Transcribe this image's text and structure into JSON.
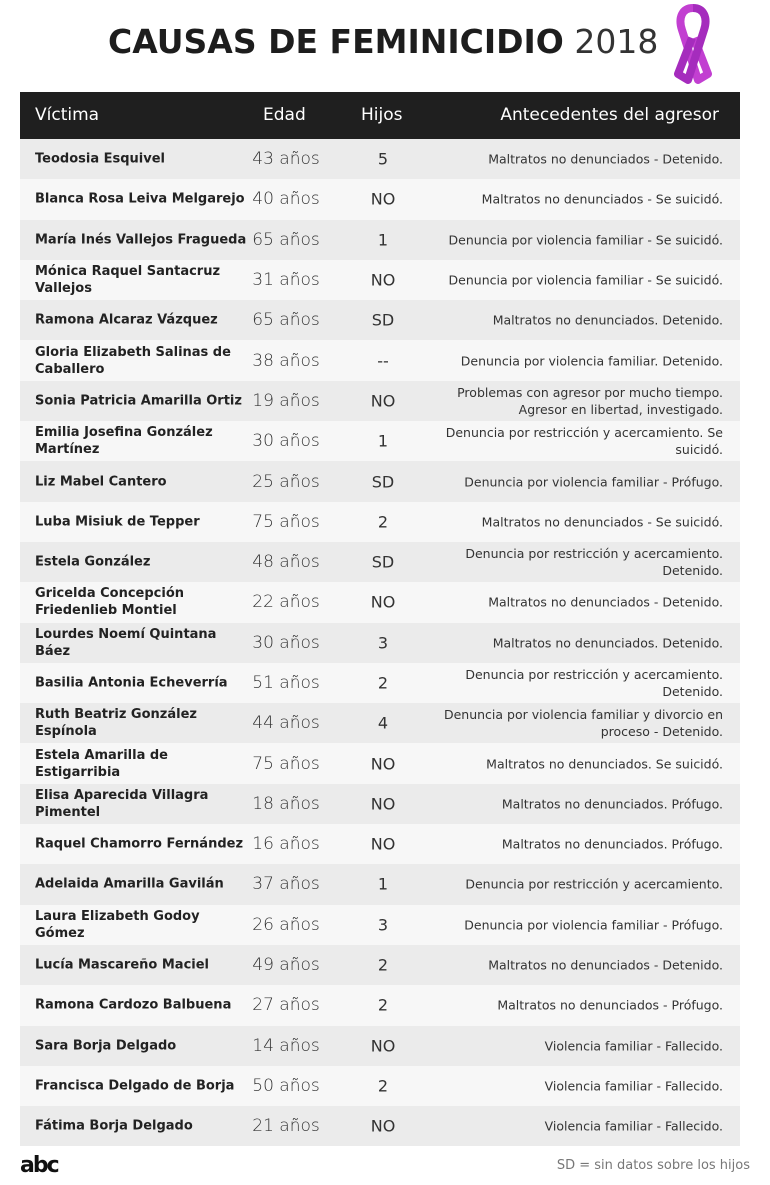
{
  "title": {
    "bold": "CAUSAS DE FEMINICIDIO",
    "year": "2018"
  },
  "ribbon_color": "#c23fd1",
  "header": {
    "victima": "Víctima",
    "edad": "Edad",
    "hijos": "Hijos",
    "antecedentes": "Antecedentes del agresor"
  },
  "rows": [
    {
      "name": "Teodosia Esquivel",
      "age": "43 años",
      "kids": "5",
      "ant": "Maltratos no denunciados - Detenido."
    },
    {
      "name": "Blanca Rosa Leiva Melgarejo",
      "age": "40 años",
      "kids": "NO",
      "ant": "Maltratos no denunciados - Se suicidó."
    },
    {
      "name": "María Inés Vallejos Fragueda",
      "age": "65 años",
      "kids": "1",
      "ant": "Denuncia por violencia familiar - Se suicidó."
    },
    {
      "name": "Mónica Raquel Santacruz Vallejos",
      "age": "31 años",
      "kids": "NO",
      "ant": "Denuncia por violencia familiar - Se suicidó."
    },
    {
      "name": "Ramona Alcaraz Vázquez",
      "age": "65 años",
      "kids": "SD",
      "ant": "Maltratos no denunciados. Detenido."
    },
    {
      "name": "Gloria Elizabeth Salinas de Caballero",
      "age": "38 años",
      "kids": "--",
      "ant": "Denuncia por violencia familiar. Detenido."
    },
    {
      "name": "Sonia Patricia Amarilla Ortiz",
      "age": "19 años",
      "kids": "NO",
      "ant": "Problemas con agresor por mucho tiempo. Agresor en libertad, investigado."
    },
    {
      "name": "Emilia Josefina González Martínez",
      "age": "30 años",
      "kids": "1",
      "ant": "Denuncia por restricción y acercamiento. Se suicidó."
    },
    {
      "name": "Liz Mabel Cantero",
      "age": "25 años",
      "kids": "SD",
      "ant": "Denuncia por violencia familiar - Prófugo."
    },
    {
      "name": "Luba Misiuk de Tepper",
      "age": "75 años",
      "kids": "2",
      "ant": "Maltratos no denunciados - Se suicidó."
    },
    {
      "name": "Estela González",
      "age": "48 años",
      "kids": "SD",
      "ant": "Denuncia por restricción y acercamiento. Detenido."
    },
    {
      "name": "Gricelda Concepción Friedenlieb Montiel",
      "age": "22 años",
      "kids": "NO",
      "ant": "Maltratos no denunciados - Detenido."
    },
    {
      "name": "Lourdes Noemí Quintana Báez",
      "age": "30 años",
      "kids": "3",
      "ant": "Maltratos no denunciados. Detenido."
    },
    {
      "name": "Basilia Antonia Echeverría",
      "age": "51 años",
      "kids": "2",
      "ant": "Denuncia por restricción y acercamiento. Detenido."
    },
    {
      "name": "Ruth Beatriz González Espínola",
      "age": "44 años",
      "kids": "4",
      "ant": "Denuncia por violencia familiar y divorcio en proceso - Detenido."
    },
    {
      "name": "Estela Amarilla de Estigarribia",
      "age": "75 años",
      "kids": "NO",
      "ant": "Maltratos no denunciados. Se suicidó."
    },
    {
      "name": "Elisa Aparecida Villagra Pimentel",
      "age": "18 años",
      "kids": "NO",
      "ant": "Maltratos no denunciados. Prófugo."
    },
    {
      "name": "Raquel Chamorro Fernández",
      "age": "16 años",
      "kids": "NO",
      "ant": "Maltratos no denunciados. Prófugo."
    },
    {
      "name": "Adelaida Amarilla Gavilán",
      "age": "37 años",
      "kids": "1",
      "ant": "Denuncia por restricción y acercamiento."
    },
    {
      "name": "Laura Elizabeth Godoy Gómez",
      "age": "26 años",
      "kids": "3",
      "ant": "Denuncia por violencia familiar - Prófugo."
    },
    {
      "name": "Lucía Mascareño Maciel",
      "age": "49 años",
      "kids": "2",
      "ant": "Maltratos no denunciados - Detenido."
    },
    {
      "name": "Ramona Cardozo Balbuena",
      "age": "27 años",
      "kids": "2",
      "ant": "Maltratos no denunciados - Prófugo."
    },
    {
      "name": "Sara Borja Delgado",
      "age": "14 años",
      "kids": "NO",
      "ant": "Violencia familiar - Fallecido."
    },
    {
      "name": "Francisca Delgado de Borja",
      "age": "50 años",
      "kids": "2",
      "ant": "Violencia familiar - Fallecido."
    },
    {
      "name": "Fátima Borja Delgado",
      "age": "21 años",
      "kids": "NO",
      "ant": "Violencia familiar - Fallecido."
    }
  ],
  "footer": {
    "logo": "abc",
    "note": "SD = sin datos sobre los hijos"
  }
}
